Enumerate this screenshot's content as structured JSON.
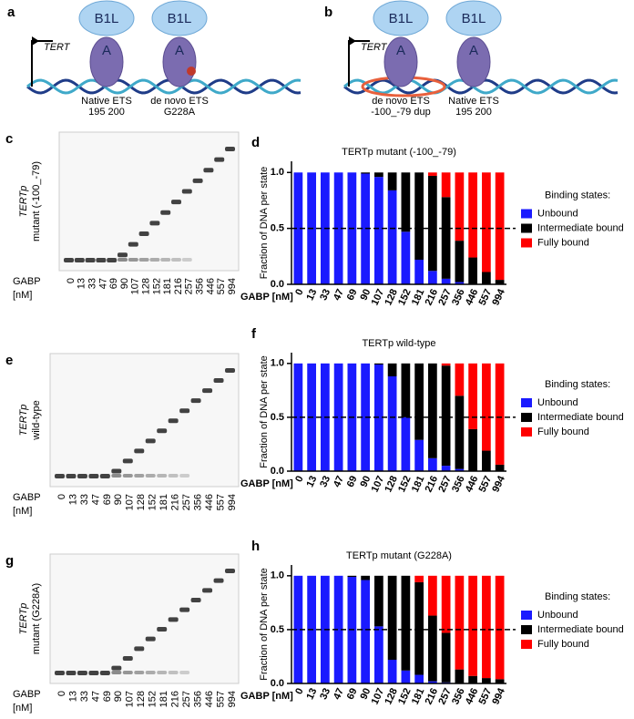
{
  "diagrams": [
    {
      "letter": "a",
      "tert": "TERT",
      "proteins": [
        "B1L",
        "B1L"
      ],
      "subunits": [
        "A",
        "A"
      ],
      "sites": [
        [
          "Native ETS",
          "195 200"
        ],
        [
          "de novo ETS",
          "G228A"
        ]
      ]
    },
    {
      "letter": "b",
      "tert": "TERT",
      "proteins": [
        "B1L",
        "B1L"
      ],
      "subunits": [
        "A",
        "A"
      ],
      "sites": [
        [
          "de novo ETS",
          "-100_-79 dup"
        ],
        [
          "Native ETS",
          "195 200"
        ]
      ]
    }
  ],
  "gels": [
    {
      "letter": "c",
      "ylabel": [
        "TERTp",
        "mutant (-100_-79)"
      ],
      "xlabel": [
        "GABP",
        "[nM]"
      ],
      "lanes": [
        "0",
        "13",
        "33",
        "47",
        "69",
        "90",
        "107",
        "128",
        "152",
        "181",
        "216",
        "257",
        "356",
        "446",
        "557",
        "994"
      ]
    },
    {
      "letter": "e",
      "ylabel": [
        "TERTp",
        "wild-type"
      ],
      "xlabel": [
        "GABP",
        "[nM]"
      ],
      "lanes": [
        "0",
        "13",
        "33",
        "47",
        "69",
        "90",
        "107",
        "128",
        "152",
        "181",
        "216",
        "257",
        "356",
        "446",
        "557",
        "994"
      ]
    },
    {
      "letter": "g",
      "ylabel": [
        "TERTp",
        "mutant (G228A)"
      ],
      "xlabel": [
        "GABP",
        "[nM]"
      ],
      "lanes": [
        "0",
        "13",
        "33",
        "47",
        "69",
        "90",
        "107",
        "128",
        "152",
        "181",
        "216",
        "257",
        "356",
        "446",
        "557",
        "994"
      ]
    }
  ],
  "chart_data": [
    {
      "letter": "d",
      "type": "bar",
      "stacked": true,
      "title": "TERTp mutant (-100_-79)",
      "ylabel": "Fraction of DNA per state",
      "xlabel": "GABP [nM]",
      "categories": [
        "0",
        "13",
        "33",
        "47",
        "69",
        "90",
        "107",
        "128",
        "152",
        "181",
        "216",
        "257",
        "356",
        "446",
        "557",
        "994"
      ],
      "ylim": [
        0,
        1.1
      ],
      "yticks": [
        {
          "value": 0,
          "label": "0.0"
        },
        0.5,
        {
          "value": 1,
          "label": "1.0"
        }
      ],
      "hline": 0.5,
      "legend_title": "Binding states:",
      "series": [
        {
          "name": "Unbound",
          "color": "#1a1aff",
          "values": [
            1,
            1,
            1,
            1,
            1,
            0.99,
            0.96,
            0.84,
            0.47,
            0.22,
            0.12,
            0.05,
            0.02,
            0,
            0,
            0
          ]
        },
        {
          "name": "Intermediate bound",
          "color": "#000000",
          "values": [
            0,
            0,
            0,
            0,
            0,
            0.01,
            0.04,
            0.16,
            0.53,
            0.78,
            0.85,
            0.73,
            0.37,
            0.24,
            0.11,
            0.04
          ]
        },
        {
          "name": "Fully bound",
          "color": "#ff0000",
          "values": [
            0,
            0,
            0,
            0,
            0,
            0,
            0,
            0,
            0,
            0,
            0.03,
            0.22,
            0.61,
            0.76,
            0.89,
            0.96
          ]
        }
      ]
    },
    {
      "letter": "f",
      "type": "bar",
      "stacked": true,
      "title": "TERTp wild-type",
      "ylabel": "Fraction of DNA per state",
      "xlabel": "GABP [nM]",
      "categories": [
        "0",
        "13",
        "33",
        "47",
        "69",
        "90",
        "107",
        "128",
        "152",
        "181",
        "216",
        "257",
        "356",
        "446",
        "557",
        "994"
      ],
      "ylim": [
        0,
        1.1
      ],
      "yticks": [
        {
          "value": 0,
          "label": "0.0"
        },
        0.5,
        {
          "value": 1,
          "label": "1.0"
        }
      ],
      "hline": 0.5,
      "legend_title": "Binding states:",
      "series": [
        {
          "name": "Unbound",
          "color": "#1a1aff",
          "values": [
            1,
            1,
            1,
            1,
            1,
            1,
            0.99,
            0.88,
            0.5,
            0.29,
            0.12,
            0.05,
            0.02,
            0,
            0,
            0
          ]
        },
        {
          "name": "Intermediate bound",
          "color": "#000000",
          "values": [
            0,
            0,
            0,
            0,
            0,
            0,
            0.01,
            0.12,
            0.5,
            0.71,
            0.88,
            0.93,
            0.68,
            0.39,
            0.19,
            0.06
          ]
        },
        {
          "name": "Fully bound",
          "color": "#ff0000",
          "values": [
            0,
            0,
            0,
            0,
            0,
            0,
            0,
            0,
            0,
            0,
            0,
            0.02,
            0.3,
            0.61,
            0.81,
            0.94
          ]
        }
      ]
    },
    {
      "letter": "h",
      "type": "bar",
      "stacked": true,
      "title": "TERTp mutant (G228A)",
      "ylabel": "Fraction of DNA per state",
      "xlabel": "GABP [nM]",
      "categories": [
        "0",
        "13",
        "33",
        "47",
        "69",
        "90",
        "107",
        "128",
        "152",
        "181",
        "216",
        "257",
        "356",
        "446",
        "557",
        "994"
      ],
      "ylim": [
        0,
        1.1
      ],
      "yticks": [
        {
          "value": 0,
          "label": "0.0"
        },
        0.5,
        {
          "value": 1,
          "label": "1.0"
        }
      ],
      "hline": 0.5,
      "legend_title": "Binding states:",
      "series": [
        {
          "name": "Unbound",
          "color": "#1a1aff",
          "values": [
            1,
            1,
            1,
            1,
            0.99,
            0.96,
            0.53,
            0.22,
            0.12,
            0.08,
            0.02,
            0.01,
            0,
            0,
            0,
            0
          ]
        },
        {
          "name": "Intermediate bound",
          "color": "#000000",
          "values": [
            0,
            0,
            0,
            0,
            0.01,
            0.04,
            0.47,
            0.78,
            0.88,
            0.86,
            0.61,
            0.46,
            0.13,
            0.07,
            0.05,
            0.04
          ]
        },
        {
          "name": "Fully bound",
          "color": "#ff0000",
          "values": [
            0,
            0,
            0,
            0,
            0,
            0,
            0,
            0,
            0,
            0.06,
            0.37,
            0.53,
            0.87,
            0.93,
            0.95,
            0.96
          ]
        }
      ]
    }
  ]
}
